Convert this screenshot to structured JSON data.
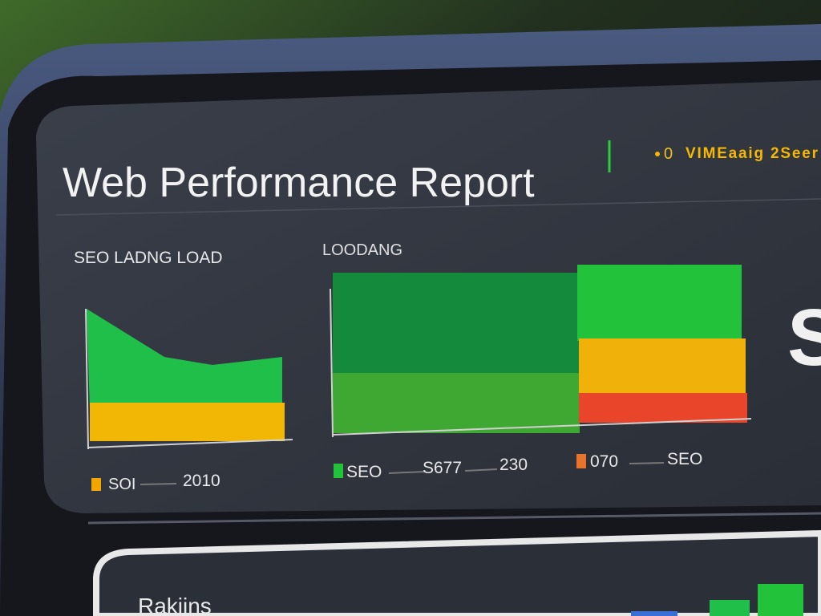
{
  "header": {
    "title": "Web Performance Report",
    "status_dot": "0",
    "status_text": "VIMEaaig 2Seer"
  },
  "left_panel": {
    "label": "SEO LADNG LOAD",
    "legend": [
      "SOI",
      "2010"
    ]
  },
  "right_panel": {
    "label": "LOODANG",
    "legend": [
      "SEO",
      "S677",
      "230",
      "070",
      "SEO"
    ]
  },
  "side_letter": "S",
  "bottom_panel": {
    "label": "Rakiins"
  }
}
